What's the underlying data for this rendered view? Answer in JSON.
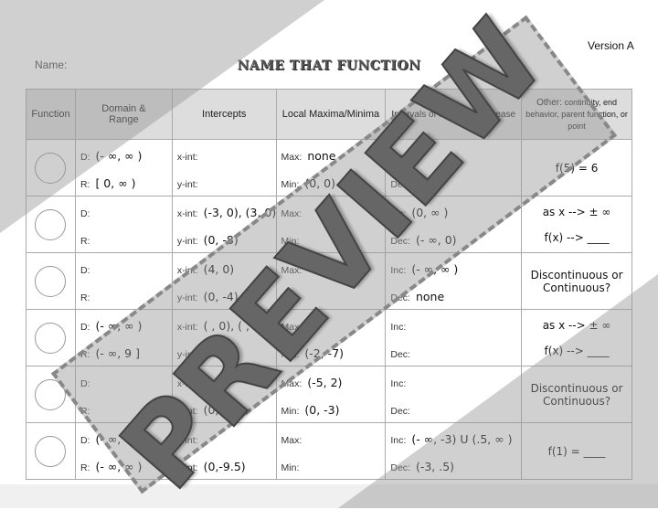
{
  "header": {
    "name_label": "Name:",
    "title": "NAME THAT FUNCTION",
    "version": "Version A"
  },
  "table": {
    "headers": {
      "function": "Function",
      "domain": "Domain & Range",
      "intercepts": "Intercepts",
      "maxmin": "Local Maxima/Minima",
      "intervals": "Intervals of Increase/Decrease",
      "other_title": "Other:",
      "other_sub": "continuity, end behavior, parent function, or point"
    },
    "labels": {
      "d": "D:",
      "r": "R:",
      "xint": "x-int:",
      "yint": "y-int:",
      "max": "Max:",
      "min": "Min:",
      "inc": "Inc:",
      "dec": "Dec:"
    },
    "rows": [
      {
        "d": "(- ∞, ∞ )",
        "r": "[ 0, ∞ )",
        "xint": "",
        "yint": "",
        "max": "none",
        "min": "(0, 0)",
        "inc": "",
        "dec": "",
        "other": [
          "f(5) = 6"
        ]
      },
      {
        "d": "",
        "r": "",
        "xint": "(-3, 0), (3, 0)",
        "yint": "(0, -8)",
        "max": "",
        "min": "",
        "inc": "(0, ∞ )",
        "dec": "(- ∞, 0)",
        "other": [
          "as x --> ± ∞",
          "f(x) --> ____"
        ]
      },
      {
        "d": "",
        "r": "",
        "xint": "(4, 0)",
        "yint": "(0, -4)",
        "max": "",
        "min": "",
        "inc": "(- ∞, ∞ )",
        "dec": "none",
        "other": [
          "Discontinuous or Continuous?"
        ]
      },
      {
        "d": "(- ∞, ∞ )",
        "r": "(- ∞, 9 ]",
        "xint": "( , 0), ( , 0),",
        "yint": "",
        "max": "",
        "min": "(-2, -7)",
        "inc": "",
        "dec": "",
        "other": [
          "as x --> ± ∞",
          "f(x) --> ____"
        ]
      },
      {
        "d": "",
        "r": "",
        "xint": "",
        "yint": "(0,-3)",
        "max": "(-5, 2)",
        "min": "(0, -3)",
        "inc": "",
        "dec": "",
        "other": [
          "Discontinuous or Continuous?"
        ]
      },
      {
        "d": "(- ∞, ∞ )",
        "r": "(- ∞, ∞ )",
        "xint": "",
        "yint": "(0,-9.5)",
        "max": "",
        "min": "",
        "inc": "(- ∞, -3) U (.5, ∞ )",
        "dec": "(-3, .5)",
        "other": [
          "f(1) = ____"
        ]
      }
    ]
  },
  "watermark": {
    "text": "PREVIEW"
  }
}
